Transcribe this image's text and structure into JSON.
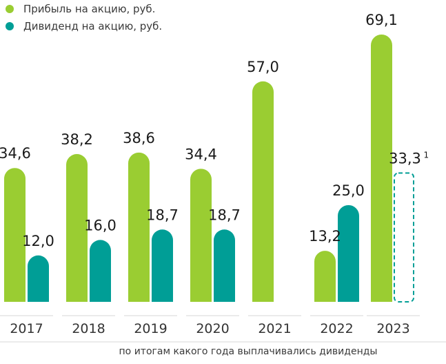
{
  "chart_data": {
    "type": "bar",
    "categories": [
      "2017",
      "2018",
      "2019",
      "2020",
      "2021",
      "2022",
      "2023"
    ],
    "series": [
      {
        "name": "Прибыль на акцию, руб.",
        "color": "#9ACD32",
        "values": [
          34.6,
          38.2,
          38.6,
          34.4,
          57.0,
          13.2,
          69.1
        ],
        "labels": [
          "34,6",
          "38,2",
          "38,6",
          "34,4",
          "57,0",
          "13,2",
          "69,1"
        ]
      },
      {
        "name": "Дивиденд на акцию, руб.",
        "color": "#009E96",
        "values": [
          12.0,
          16.0,
          18.7,
          18.7,
          null,
          25.0,
          33.3
        ],
        "labels": [
          "12,0",
          "16,0",
          "18,7",
          "18,7",
          "",
          "25,0",
          "33,3"
        ],
        "projected": [
          false,
          false,
          false,
          false,
          false,
          false,
          true
        ]
      }
    ],
    "footnote_marker": "1",
    "xlabel": "по итогам какого года выплачивались дивиденды",
    "ylim": [
      0,
      70
    ],
    "grid": false,
    "legend_position": "top-left"
  }
}
